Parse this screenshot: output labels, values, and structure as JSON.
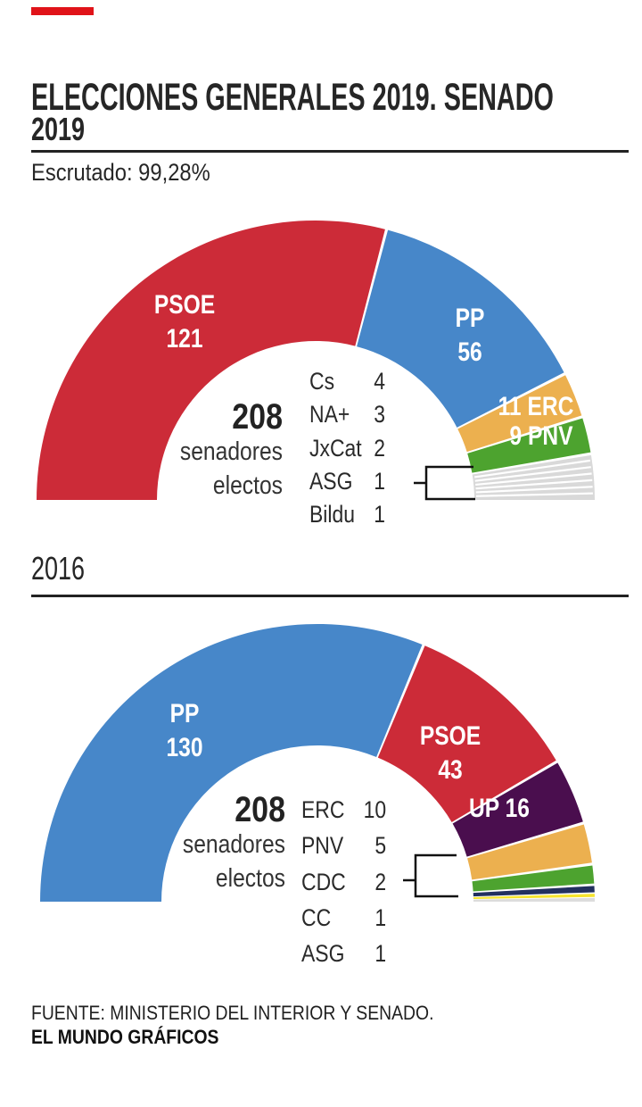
{
  "brand": {
    "bar_color": "#e01319"
  },
  "header": {
    "title": "ELECCIONES GENERALES 2019. SENADO"
  },
  "sections": [
    {
      "year": "2019",
      "subtitle": "Escrutado: 99,28%"
    },
    {
      "year": "2016"
    }
  ],
  "footer": {
    "source": "FUENTE: MINISTERIO DEL INTERIOR Y SENADO.",
    "credit": "EL MUNDO GRÁFICOS"
  },
  "chart_data": [
    {
      "type": "hemicycle-donut",
      "year": "2019",
      "total_seats": 208,
      "center_label": {
        "value": "208",
        "line1": "senadores",
        "line2": "electos"
      },
      "segments": [
        {
          "party": "PSOE",
          "seats": 121,
          "color": "#cc2b38",
          "arc_label": [
            "PSOE",
            "121"
          ]
        },
        {
          "party": "PP",
          "seats": 56,
          "color": "#4787c9",
          "arc_label": [
            "PP",
            "56"
          ]
        },
        {
          "party": "ERC",
          "seats": 11,
          "color": "#ecb04f",
          "arc_label": [
            "11 ERC"
          ]
        },
        {
          "party": "PNV",
          "seats": 9,
          "color": "#4da32f",
          "arc_label": [
            "9 PNV"
          ]
        },
        {
          "party": "OTROS",
          "seats": 11,
          "color": "#d9d9d9",
          "stripes": 6
        }
      ],
      "side_list": [
        {
          "label": "Cs",
          "value": "4"
        },
        {
          "label": "NA+",
          "value": "3"
        },
        {
          "label": "JxCat",
          "value": "2"
        },
        {
          "label": "ASG",
          "value": "1"
        },
        {
          "label": "Bildu",
          "value": "1"
        }
      ]
    },
    {
      "type": "hemicycle-donut",
      "year": "2016",
      "total_seats": 208,
      "center_label": {
        "value": "208",
        "line1": "senadores",
        "line2": "electos"
      },
      "segments": [
        {
          "party": "PP",
          "seats": 130,
          "color": "#4787c9",
          "arc_label": [
            "PP",
            "130"
          ]
        },
        {
          "party": "PSOE",
          "seats": 43,
          "color": "#cc2b38",
          "arc_label": [
            "PSOE",
            "43"
          ]
        },
        {
          "party": "UP",
          "seats": 16,
          "color": "#4a0e4e",
          "arc_label": [
            "UP 16"
          ]
        },
        {
          "party": "ERC",
          "seats": 10,
          "color": "#ecb04f"
        },
        {
          "party": "PNV",
          "seats": 5,
          "color": "#4da32f"
        },
        {
          "party": "CDC",
          "seats": 2,
          "color": "#22305f"
        },
        {
          "party": "CC",
          "seats": 1,
          "color": "#f6e42e"
        },
        {
          "party": "ASG",
          "seats": 1,
          "color": "#dcdcdc"
        }
      ],
      "side_list": [
        {
          "label": "ERC",
          "value": "10"
        },
        {
          "label": "PNV",
          "value": "5"
        },
        {
          "label": "CDC",
          "value": "2"
        },
        {
          "label": "CC",
          "value": "1"
        },
        {
          "label": "ASG",
          "value": "1"
        }
      ]
    }
  ]
}
